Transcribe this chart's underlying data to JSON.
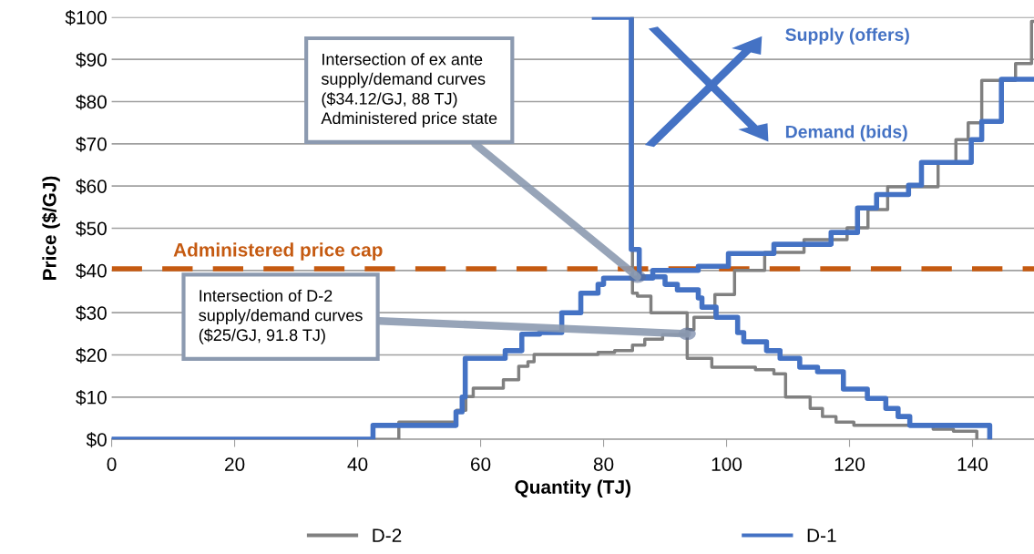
{
  "chart_data": {
    "type": "step",
    "xlabel": "Quantity (TJ)",
    "ylabel": "Price ($/GJ)",
    "xlim": [
      0,
      150
    ],
    "xticks": [
      0,
      20,
      40,
      60,
      80,
      100,
      120,
      140
    ],
    "ylim": [
      0,
      100
    ],
    "yticks": [
      {
        "value": 0,
        "label": "$0"
      },
      {
        "value": 10,
        "label": "$10"
      },
      {
        "value": 20,
        "label": "$20"
      },
      {
        "value": 30,
        "label": "$30"
      },
      {
        "value": 40,
        "label": "$40"
      },
      {
        "value": 50,
        "label": "$50"
      },
      {
        "value": 60,
        "label": "$60"
      },
      {
        "value": 70,
        "label": "$70"
      },
      {
        "value": 80,
        "label": "$80"
      },
      {
        "value": 90,
        "label": "$90"
      },
      {
        "value": 100,
        "label": "$100"
      }
    ],
    "grid": "y",
    "legend": "bottom",
    "series": [
      {
        "name": "D-2",
        "color": "#808080",
        "x": [
          0,
          46.7,
          56.1,
          57.6,
          58.8,
          63.7,
          66.2,
          67.7,
          68.7,
          79.1,
          81.8,
          84.7,
          86.7,
          89.6,
          93.6,
          94.7,
          98.1,
          101.3,
          106.2,
          112.6,
          119.6,
          123,
          126.2,
          134.4,
          137.3,
          139.3,
          141.5,
          147,
          149.6,
          150
        ],
        "values": [
          0,
          4.1,
          6.9,
          10.1,
          12.1,
          14.1,
          17.3,
          18.4,
          20.1,
          20.6,
          21,
          22.3,
          23.7,
          24.8,
          26,
          28.9,
          34.3,
          40,
          44.3,
          47.3,
          50.1,
          54.4,
          59.8,
          65.6,
          71,
          75,
          85,
          89,
          99,
          99
        ]
      },
      {
        "color": "#808080",
        "x": [
          84.6,
          84.7,
          85.5,
          87.7,
          93.6,
          97.6,
          104.7,
          107.7,
          109.6,
          113.6,
          115.6,
          117.8,
          120.7,
          133.6,
          136.9,
          140.7
        ],
        "values": [
          100,
          34.6,
          33.9,
          30,
          19.2,
          17.1,
          16.5,
          15.5,
          10,
          7.3,
          5.4,
          4.1,
          3.3,
          2.4,
          1.9,
          0
        ]
      },
      {
        "name": "D-1",
        "color": "#4472c4",
        "x": [
          0,
          42.5,
          56,
          57,
          57.5,
          64,
          66.7,
          69.6,
          73.2,
          76.3,
          79.1,
          80,
          88,
          95.4,
          100.3,
          107.7,
          117,
          121.3,
          124.4,
          129.6,
          131.7,
          139.8,
          141.5,
          144.7,
          150
        ],
        "values": [
          0,
          3.3,
          6.5,
          10,
          19.2,
          21,
          24.9,
          25.3,
          30,
          34.6,
          36.7,
          38.2,
          40,
          41,
          44,
          46.2,
          49,
          54.8,
          58,
          60.2,
          65.6,
          71,
          75.3,
          85.3,
          85.3
        ]
      },
      {
        "color": "#4472c4",
        "x": [
          78.5,
          84.5,
          85.8,
          90,
          92,
          95.4,
          96,
          98.3,
          101.8,
          102.8,
          106.5,
          108.7,
          111.9,
          114.8,
          119,
          122.9,
          125.9,
          127.9,
          129.8,
          142.8
        ],
        "values": [
          100,
          45,
          38.5,
          36.7,
          35.4,
          33.5,
          31.3,
          28.9,
          25.3,
          23.1,
          21,
          19.2,
          17.1,
          16,
          11.9,
          9.7,
          7.3,
          5.4,
          3.3,
          0
        ]
      }
    ],
    "ref_lines": [
      {
        "axis": "y",
        "value": 40.4,
        "label": "Administered price cap",
        "color": "#c55a11",
        "line_style": "dashed"
      }
    ],
    "annotations": [
      {
        "text": "Intersection of ex ante\nsupply/demand curves\n($34.12/GJ, 88 TJ)\nAdministered price state",
        "x": 85.5,
        "y": 38.5
      },
      {
        "text": "Intersection of D-2\nsupply/demand curves\n($25/GJ, 91.8 TJ)",
        "x": 93.6,
        "y": 25
      },
      "Supply (offers)",
      "Demand (bids)"
    ]
  }
}
